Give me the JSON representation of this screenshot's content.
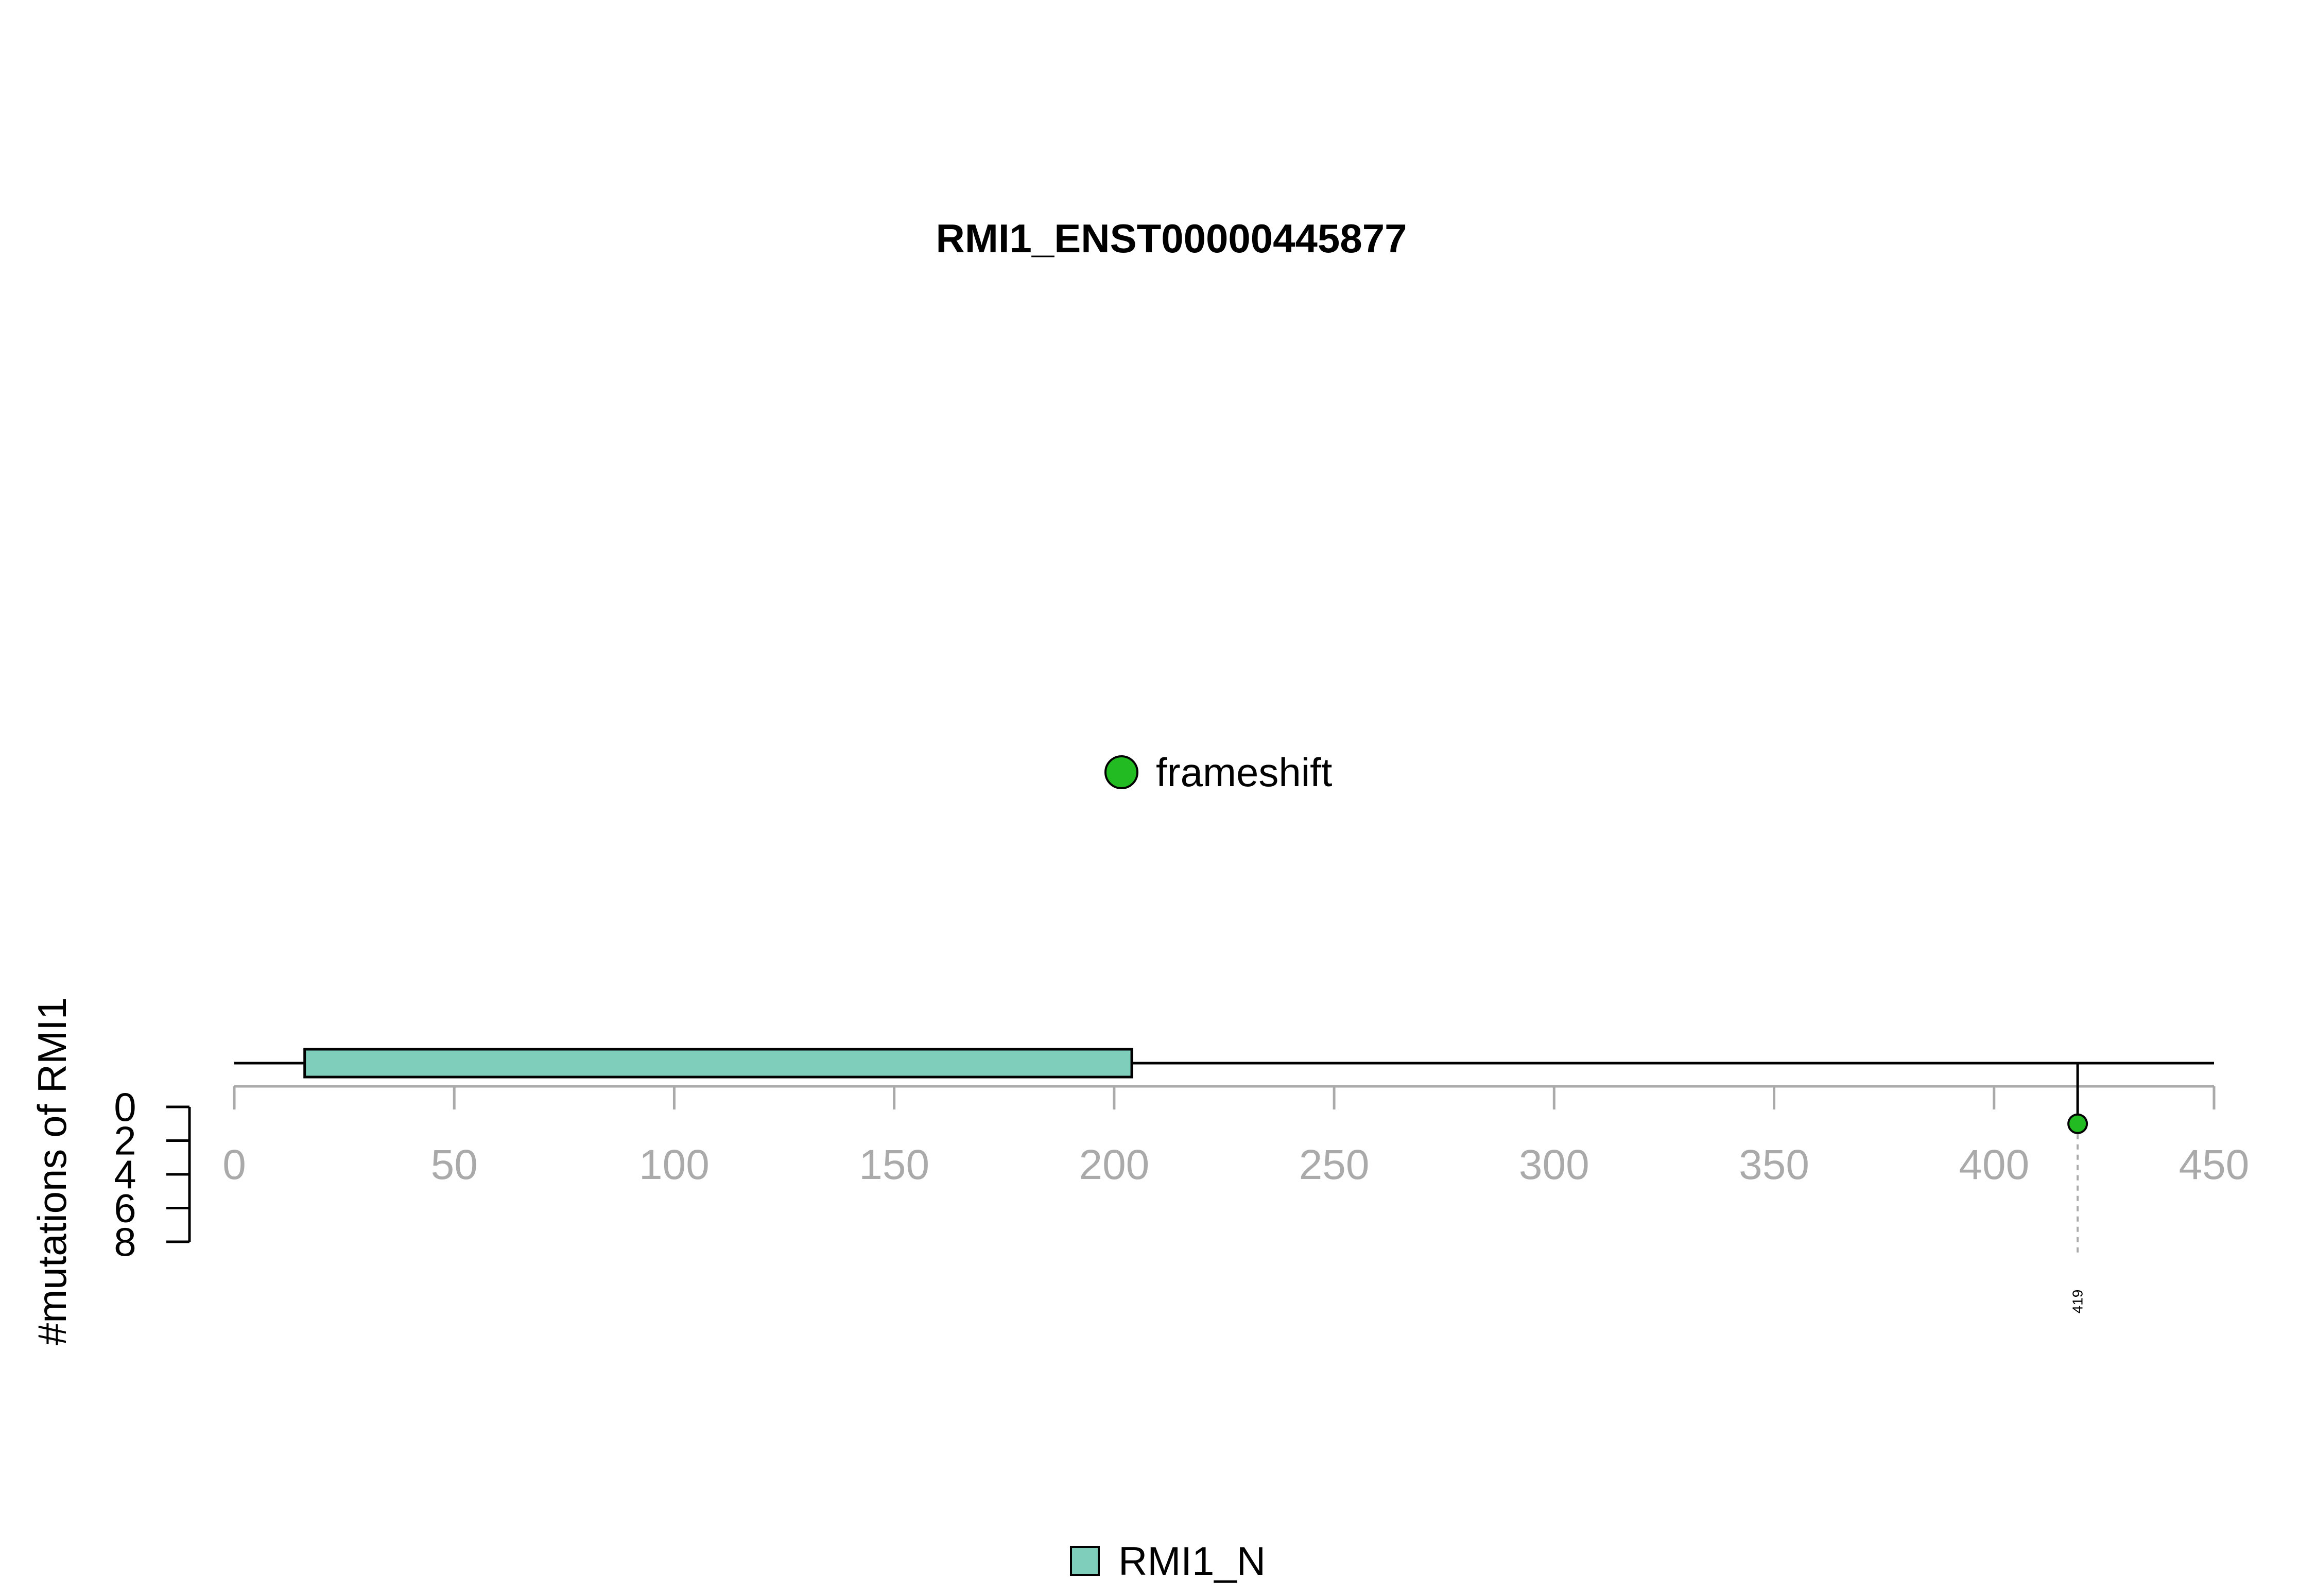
{
  "chart_data": {
    "type": "lollipop",
    "title": "RMI1_ENST00000445877",
    "ylabel": "#mutations of RMI1",
    "protein_length": 450,
    "xlim": [
      0,
      450
    ],
    "x_ticks": [
      "0",
      "50",
      "100",
      "150",
      "200",
      "250",
      "300",
      "350",
      "400",
      "450"
    ],
    "ylim": [
      0,
      8
    ],
    "y_ticks": [
      "0",
      "2",
      "4",
      "6",
      "8"
    ],
    "domains": [
      {
        "name": "RMI1_N",
        "start": 16,
        "end": 204,
        "color": "#7fcdbb"
      }
    ],
    "mutations": [
      {
        "position": 419,
        "label": "419",
        "count": 1,
        "type": "frameshift",
        "color": "#22bb22"
      }
    ],
    "mutation_legend": [
      {
        "label": "frameshift",
        "color": "#22bb22"
      }
    ],
    "domain_legend": [
      {
        "label": "RMI1_N",
        "color": "#7fcdbb"
      }
    ]
  }
}
